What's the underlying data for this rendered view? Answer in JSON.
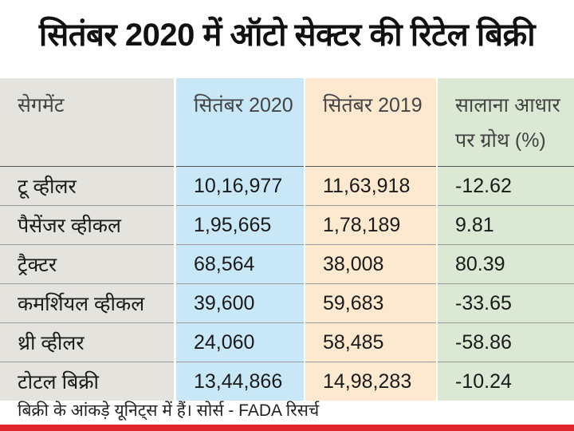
{
  "chart_data": {
    "type": "table",
    "title": "सितंबर 2020 में ऑटो सेक्टर की रिटेल बिक्री",
    "columns": [
      "सेगमेंट",
      "सितंबर 2020",
      "सितंबर 2019",
      "सालाना आधार पर ग्रोथ (%)"
    ],
    "rows": [
      [
        "टू व्हीलर",
        "10,16,977",
        "11,63,918",
        "-12.62"
      ],
      [
        "पैसेंजर व्हीकल",
        "1,95,665",
        "1,78,189",
        "9.81"
      ],
      [
        "ट्रैक्टर",
        "68,564",
        "38,008",
        "80.39"
      ],
      [
        "कमर्शियल व्हीकल",
        "39,600",
        "59,683",
        "-33.65"
      ],
      [
        "थ्री व्हीलर",
        "24,060",
        "58,485",
        "-58.86"
      ],
      [
        "टोटल बिक्री",
        "13,44,866",
        "14,98,283",
        "-10.24"
      ]
    ],
    "footnote": "बिक्री के आंकड़े यूनिट्स में हैं। सोर्स - FADA रिसर्च",
    "colors": {
      "segment": "#e4e3de",
      "sep2020": "#c8e8f8",
      "sep2019": "#fde9cf",
      "growth": "#dbe8d4",
      "accent_bar": "#e0262d"
    }
  }
}
